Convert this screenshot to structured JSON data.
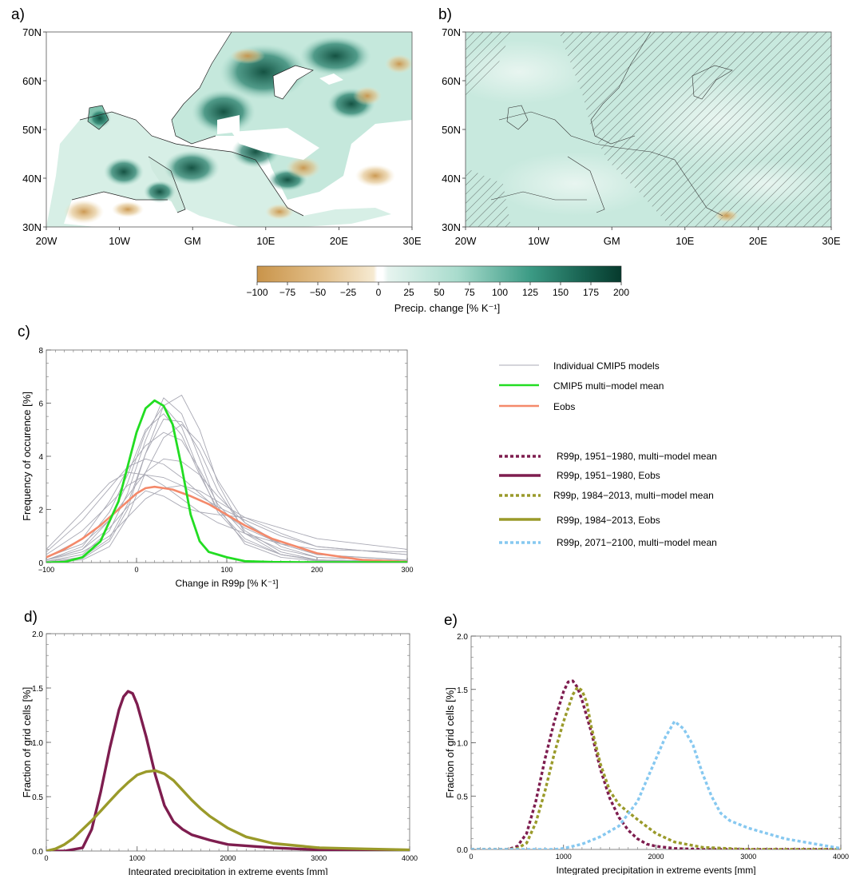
{
  "panel_labels": {
    "a": "a)",
    "b": "b)",
    "c": "c)",
    "d": "d)",
    "e": "e)"
  },
  "maps": {
    "lat_ticks": [
      "70N",
      "60N",
      "50N",
      "40N",
      "30N"
    ],
    "lon_ticks": [
      "20W",
      "10W",
      "GM",
      "10E",
      "20E",
      "30E"
    ]
  },
  "colorbar": {
    "ticks": [
      "−100",
      "−75",
      "−50",
      "−25",
      "0",
      "25",
      "50",
      "75",
      "100",
      "125",
      "150",
      "175",
      "200"
    ],
    "label": "Precip. change [% K⁻¹]",
    "colors": {
      "dry": "#c9944a",
      "mid_dry": "#f1e1bf",
      "zero": "#ffffff",
      "mid_wet": "#9fd6c5",
      "wet": "#0b4a3a"
    }
  },
  "legend": {
    "individual": "Individual CMIP5 models",
    "mmm": "CMIP5 multi−model mean",
    "eobs": "Eobs",
    "r1": "R99p, 1951−1980, multi−model mean",
    "r2": "R99p, 1951−1980, Eobs",
    "r3": "R99p, 1984−2013, multi−model mean",
    "r4": "R99p, 1984−2013, Eobs",
    "r5": "R99p, 2071−2100, multi−model mean"
  },
  "colors": {
    "gray": "#a9a9b4",
    "green": "#22dd22",
    "orange": "#f4896a",
    "maroon": "#7e1d4f",
    "olive": "#9a9a2a",
    "lightblue": "#86c8f0"
  },
  "chart_data": [
    {
      "panel": "c",
      "type": "line",
      "xlabel": "Change in R99p [% K⁻¹]",
      "ylabel": "Frequency of occurence [%]",
      "xlim": [
        -100,
        300
      ],
      "ylim": [
        0,
        8
      ],
      "xticks": [
        "−100",
        "0",
        "100",
        "200",
        "300"
      ],
      "yticks": [
        "0",
        "2",
        "4",
        "6",
        "8"
      ],
      "series": [
        {
          "name": "CMIP5 multi−model mean",
          "x": [
            -100,
            -80,
            -60,
            -40,
            -20,
            -10,
            0,
            10,
            20,
            30,
            40,
            50,
            60,
            70,
            80,
            90,
            100,
            120,
            150,
            200,
            300
          ],
          "y": [
            0,
            0.02,
            0.2,
            0.8,
            2.3,
            3.6,
            4.9,
            5.8,
            6.1,
            5.9,
            5.2,
            3.6,
            1.8,
            0.8,
            0.4,
            0.3,
            0.2,
            0.05,
            0.02,
            0.01,
            0.01
          ]
        },
        {
          "name": "Eobs",
          "x": [
            -100,
            -80,
            -60,
            -40,
            -20,
            0,
            10,
            20,
            30,
            40,
            60,
            80,
            100,
            120,
            150,
            200,
            250,
            300
          ],
          "y": [
            0.2,
            0.5,
            0.9,
            1.4,
            2.0,
            2.6,
            2.8,
            2.85,
            2.8,
            2.75,
            2.5,
            2.2,
            1.8,
            1.4,
            0.9,
            0.35,
            0.1,
            0.03
          ]
        },
        {
          "name": "Individual CMIP5 models",
          "x": [
            -100,
            -60,
            -30,
            -10,
            10,
            30,
            50,
            70,
            90,
            120,
            160,
            200,
            300
          ],
          "y": [
            0.1,
            0.5,
            1.6,
            3.0,
            4.9,
            5.9,
            5.1,
            3.4,
            1.9,
            0.8,
            0.3,
            0.1,
            0.03
          ]
        },
        {
          "name": "Individual CMIP5 models",
          "x": [
            -100,
            -60,
            -30,
            -10,
            10,
            30,
            50,
            70,
            90,
            120,
            160,
            200,
            300
          ],
          "y": [
            0.2,
            0.9,
            2.3,
            3.5,
            4.4,
            4.9,
            4.6,
            3.5,
            2.2,
            1.1,
            0.5,
            0.2,
            0.05
          ]
        },
        {
          "name": "Individual CMIP5 models",
          "x": [
            -100,
            -60,
            -30,
            -10,
            10,
            30,
            50,
            70,
            90,
            120,
            160,
            200,
            300
          ],
          "y": [
            0.05,
            0.3,
            1.2,
            2.6,
            4.6,
            6.2,
            5.6,
            3.9,
            2.1,
            0.7,
            0.2,
            0.06,
            0.02
          ]
        },
        {
          "name": "Individual CMIP5 models",
          "x": [
            -100,
            -60,
            -30,
            -10,
            10,
            30,
            50,
            70,
            90,
            120,
            160,
            200,
            300
          ],
          "y": [
            0.4,
            1.6,
            2.8,
            3.6,
            3.9,
            3.7,
            3.2,
            2.6,
            2.0,
            1.3,
            0.7,
            0.3,
            0.1
          ]
        },
        {
          "name": "Individual CMIP5 models",
          "x": [
            -100,
            -60,
            -30,
            -10,
            10,
            30,
            50,
            70,
            90,
            120,
            160,
            200,
            300
          ],
          "y": [
            0.1,
            0.6,
            1.9,
            3.3,
            5.0,
            5.6,
            4.8,
            3.3,
            2.0,
            0.9,
            0.3,
            0.1,
            0.03
          ]
        },
        {
          "name": "Individual CMIP5 models",
          "x": [
            -100,
            -60,
            -30,
            -10,
            10,
            30,
            50,
            70,
            90,
            120,
            160,
            200,
            300
          ],
          "y": [
            0.02,
            0.1,
            0.6,
            1.7,
            3.4,
            4.7,
            5.2,
            4.5,
            3.1,
            1.5,
            0.6,
            0.2,
            0.05
          ]
        },
        {
          "name": "Individual CMIP5 models",
          "x": [
            -100,
            -60,
            -30,
            -10,
            10,
            30,
            50,
            70,
            90,
            120,
            160,
            200,
            300
          ],
          "y": [
            0.3,
            1.2,
            2.2,
            2.9,
            3.3,
            3.2,
            2.9,
            2.5,
            2.1,
            1.6,
            1.0,
            0.6,
            0.3
          ]
        },
        {
          "name": "Individual CMIP5 models",
          "x": [
            -100,
            -60,
            -30,
            -10,
            10,
            30,
            50,
            70,
            90,
            120,
            160,
            200,
            300
          ],
          "y": [
            0.1,
            0.4,
            1.0,
            1.7,
            2.4,
            2.8,
            2.9,
            2.7,
            2.3,
            1.7,
            1.1,
            0.6,
            0.3
          ]
        },
        {
          "name": "Individual CMIP5 models",
          "x": [
            -100,
            -60,
            -30,
            -10,
            10,
            30,
            50,
            70,
            90,
            120,
            160,
            200,
            300
          ],
          "y": [
            0.5,
            1.9,
            3.0,
            3.4,
            3.3,
            2.9,
            2.4,
            1.9,
            1.5,
            1.1,
            0.7,
            0.5,
            0.4
          ]
        },
        {
          "name": "Individual CMIP5 models",
          "x": [
            -100,
            -60,
            -30,
            -10,
            10,
            30,
            50,
            70,
            90,
            120,
            160,
            200,
            300
          ],
          "y": [
            0.05,
            0.2,
            0.9,
            2.2,
            4.1,
            5.4,
            5.3,
            4.2,
            2.7,
            1.2,
            0.4,
            0.1,
            0.03
          ]
        },
        {
          "name": "Individual CMIP5 models",
          "x": [
            -100,
            -60,
            -30,
            -10,
            10,
            30,
            50,
            70,
            90,
            120,
            160,
            200,
            300
          ],
          "y": [
            0.2,
            0.7,
            1.6,
            2.5,
            3.4,
            3.9,
            3.8,
            3.3,
            2.5,
            1.5,
            0.7,
            0.3,
            0.08
          ]
        },
        {
          "name": "Individual CMIP5 models",
          "x": [
            -100,
            -60,
            -30,
            -10,
            10,
            30,
            50,
            70,
            90,
            120,
            160,
            200,
            300
          ],
          "y": [
            0.02,
            0.15,
            0.8,
            2.0,
            4.1,
            5.9,
            6.3,
            5.0,
            3.0,
            1.1,
            0.3,
            0.08,
            0.02
          ]
        },
        {
          "name": "Individual CMIP5 models",
          "x": [
            -100,
            -60,
            -30,
            -10,
            10,
            30,
            50,
            70,
            90,
            120,
            160,
            200,
            300
          ],
          "y": [
            0.1,
            0.5,
            1.3,
            2.1,
            2.7,
            2.5,
            2.1,
            1.9,
            1.8,
            1.7,
            1.3,
            0.9,
            0.5
          ]
        }
      ]
    },
    {
      "panel": "d",
      "type": "line",
      "xlabel": "Integrated precipitation in extreme events [mm]",
      "ylabel": "Fraction of grid cells [%]",
      "xlim": [
        0,
        4000
      ],
      "ylim": [
        0,
        2.0
      ],
      "xticks": [
        "0",
        "1000",
        "2000",
        "3000",
        "4000"
      ],
      "yticks": [
        "0.0",
        "0.5",
        "1.0",
        "1.5",
        "2.0"
      ],
      "series": [
        {
          "name": "R99p, 1951−1980, Eobs",
          "x": [
            0,
            200,
            400,
            500,
            600,
            700,
            800,
            850,
            900,
            950,
            1000,
            1100,
            1200,
            1300,
            1400,
            1500,
            1600,
            1800,
            2000,
            2500,
            3000,
            4000
          ],
          "y": [
            0,
            0,
            0.03,
            0.2,
            0.55,
            0.95,
            1.3,
            1.42,
            1.47,
            1.45,
            1.35,
            1.05,
            0.7,
            0.42,
            0.27,
            0.2,
            0.15,
            0.1,
            0.06,
            0.03,
            0.01,
            0
          ]
        },
        {
          "name": "R99p, 1984−2013, Eobs",
          "x": [
            0,
            100,
            200,
            300,
            400,
            500,
            600,
            700,
            800,
            900,
            1000,
            1100,
            1200,
            1300,
            1400,
            1500,
            1600,
            1700,
            1800,
            2000,
            2200,
            2500,
            3000,
            3500,
            4000
          ],
          "y": [
            0,
            0.02,
            0.06,
            0.12,
            0.2,
            0.28,
            0.37,
            0.46,
            0.55,
            0.63,
            0.7,
            0.73,
            0.74,
            0.71,
            0.65,
            0.56,
            0.47,
            0.39,
            0.32,
            0.21,
            0.13,
            0.07,
            0.03,
            0.02,
            0.01
          ]
        }
      ]
    },
    {
      "panel": "e",
      "type": "line",
      "xlabel": "Integrated precipitation in extreme events [mm]",
      "ylabel": "Fraction of grid cells [%]",
      "xlim": [
        0,
        4000
      ],
      "ylim": [
        0,
        2.0
      ],
      "xticks": [
        "0",
        "1000",
        "2000",
        "3000",
        "4000"
      ],
      "yticks": [
        "0.0",
        "0.5",
        "1.0",
        "1.5",
        "2.0"
      ],
      "series": [
        {
          "name": "R99p, 1951−1980, multi−model mean",
          "x": [
            0,
            400,
            500,
            600,
            700,
            800,
            900,
            1000,
            1050,
            1100,
            1150,
            1200,
            1300,
            1400,
            1500,
            1600,
            1700,
            1800,
            1900,
            2000,
            2200,
            2500,
            3000,
            4000
          ],
          "y": [
            0,
            0,
            0.03,
            0.15,
            0.45,
            0.85,
            1.2,
            1.48,
            1.57,
            1.58,
            1.52,
            1.4,
            1.1,
            0.75,
            0.48,
            0.3,
            0.18,
            0.1,
            0.05,
            0.03,
            0.01,
            0,
            0,
            0
          ]
        },
        {
          "name": "R99p, 1984−2013, multi−model mean",
          "x": [
            0,
            400,
            500,
            600,
            700,
            800,
            900,
            1000,
            1100,
            1150,
            1200,
            1250,
            1300,
            1400,
            1500,
            1600,
            1700,
            1800,
            2000,
            2200,
            2500,
            3000,
            4000
          ],
          "y": [
            0,
            0,
            0.01,
            0.06,
            0.25,
            0.55,
            0.9,
            1.2,
            1.45,
            1.52,
            1.49,
            1.38,
            1.15,
            0.8,
            0.55,
            0.42,
            0.35,
            0.28,
            0.15,
            0.07,
            0.02,
            0,
            0
          ]
        },
        {
          "name": "R99p, 2071−2100, multi−model mean",
          "x": [
            0,
            900,
            1000,
            1200,
            1400,
            1600,
            1800,
            1900,
            2000,
            2100,
            2200,
            2300,
            2400,
            2500,
            2600,
            2700,
            2800,
            3000,
            3200,
            3400,
            3600,
            3800,
            4000
          ],
          "y": [
            0,
            0,
            0.01,
            0.05,
            0.12,
            0.22,
            0.45,
            0.65,
            0.85,
            1.05,
            1.2,
            1.13,
            0.98,
            0.72,
            0.5,
            0.34,
            0.27,
            0.2,
            0.15,
            0.1,
            0.07,
            0.04,
            0.01
          ]
        }
      ]
    }
  ]
}
